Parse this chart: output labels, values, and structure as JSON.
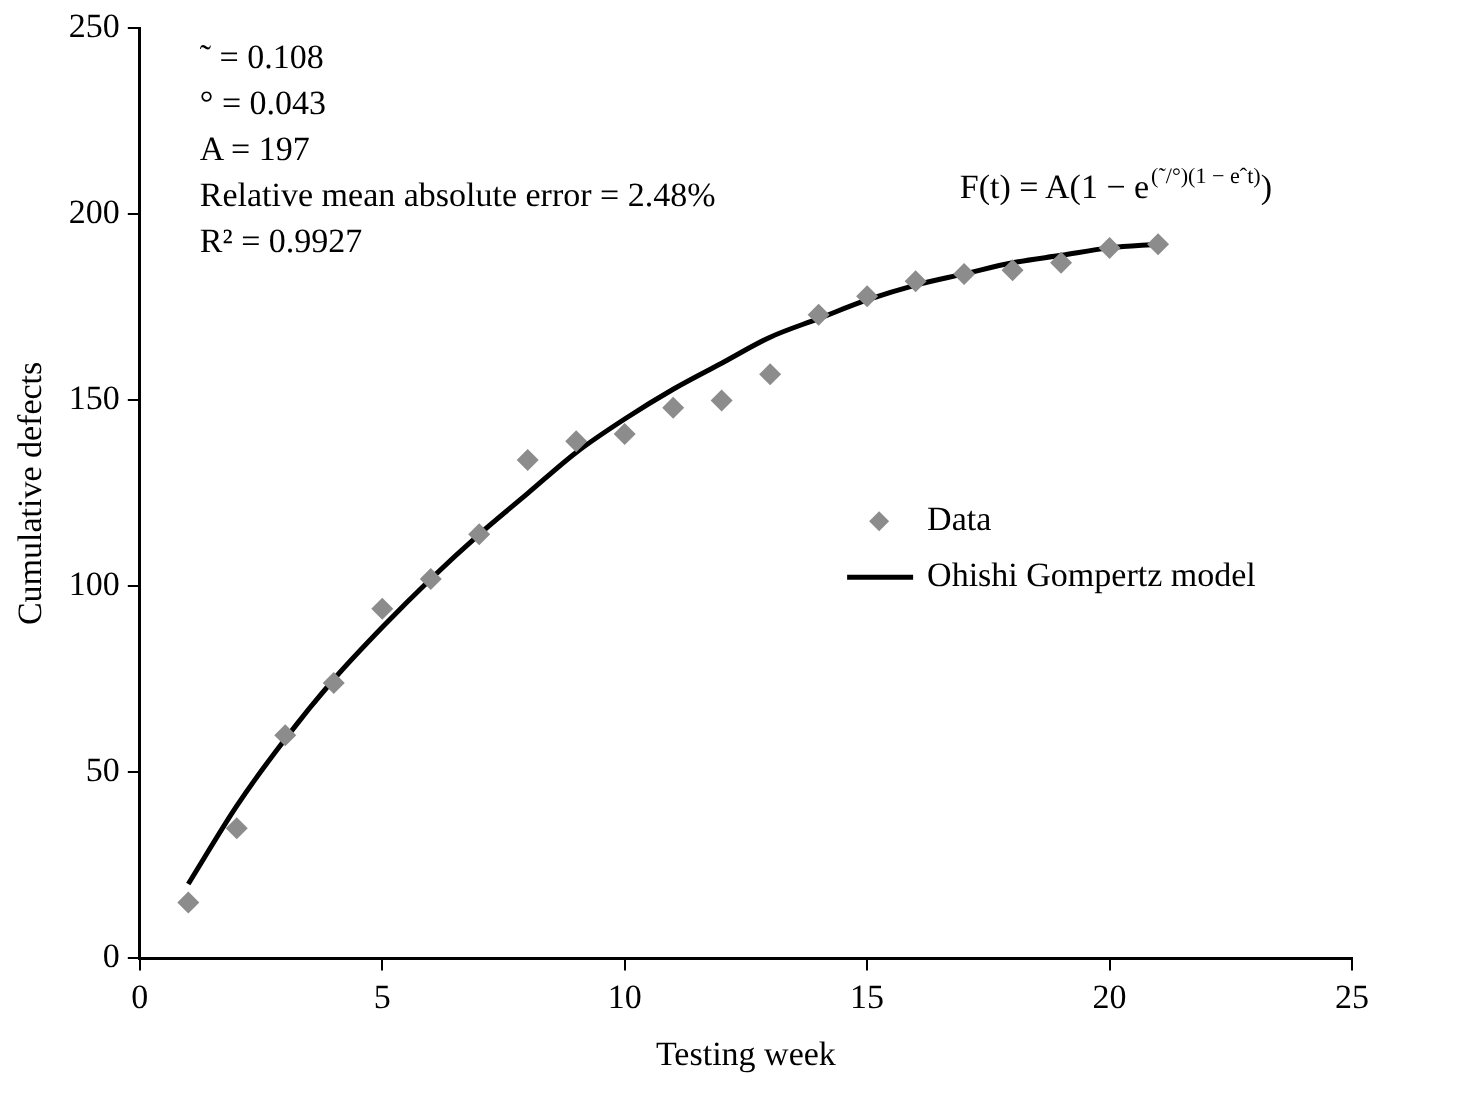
{
  "chart_data": {
    "type": "scatter",
    "xlabel": "Testing week",
    "ylabel": "Cumulative defects",
    "xlim": [
      0,
      25
    ],
    "xticks": [
      0,
      5,
      10,
      15,
      20,
      25
    ],
    "ylim": [
      0,
      250
    ],
    "yticks": [
      0,
      50,
      100,
      150,
      200,
      250
    ],
    "grid": false,
    "legend": "right",
    "marker": "diamond",
    "annotations": [
      "˜ = 0.108",
      "° = 0.043",
      "A = 197",
      "Relative mean absolute error = 2.48%",
      "R² = 0.9927",
      "F(t) = A(1 − e$^{(˜/°)(1 − eˆt)}$)"
    ],
    "series": [
      {
        "name": "Data",
        "color": "#8c8c8c",
        "x": [
          1,
          2,
          3,
          4,
          5,
          6,
          7,
          8,
          9,
          10,
          11,
          12,
          13,
          14,
          15,
          16,
          17,
          18,
          19,
          20,
          21
        ],
        "values": [
          15,
          35,
          60,
          74,
          94,
          102,
          114,
          134,
          139,
          141,
          148,
          150,
          157,
          173,
          178,
          182,
          184,
          185,
          187,
          191,
          192
        ]
      },
      {
        "name": "Ohishi Gompertz model",
        "type": "line",
        "color": "#000000",
        "marker": "none",
        "line_style": "solid",
        "x": [
          1,
          2,
          3,
          4,
          5,
          6,
          7,
          8,
          9,
          10,
          11,
          12,
          13,
          14,
          15,
          16,
          17,
          18,
          19,
          20,
          21
        ],
        "values": [
          20,
          41,
          59,
          75,
          89,
          102,
          114,
          125,
          136,
          145,
          153,
          160,
          167,
          172,
          177,
          181,
          184,
          187,
          189,
          191,
          192
        ]
      }
    ]
  }
}
